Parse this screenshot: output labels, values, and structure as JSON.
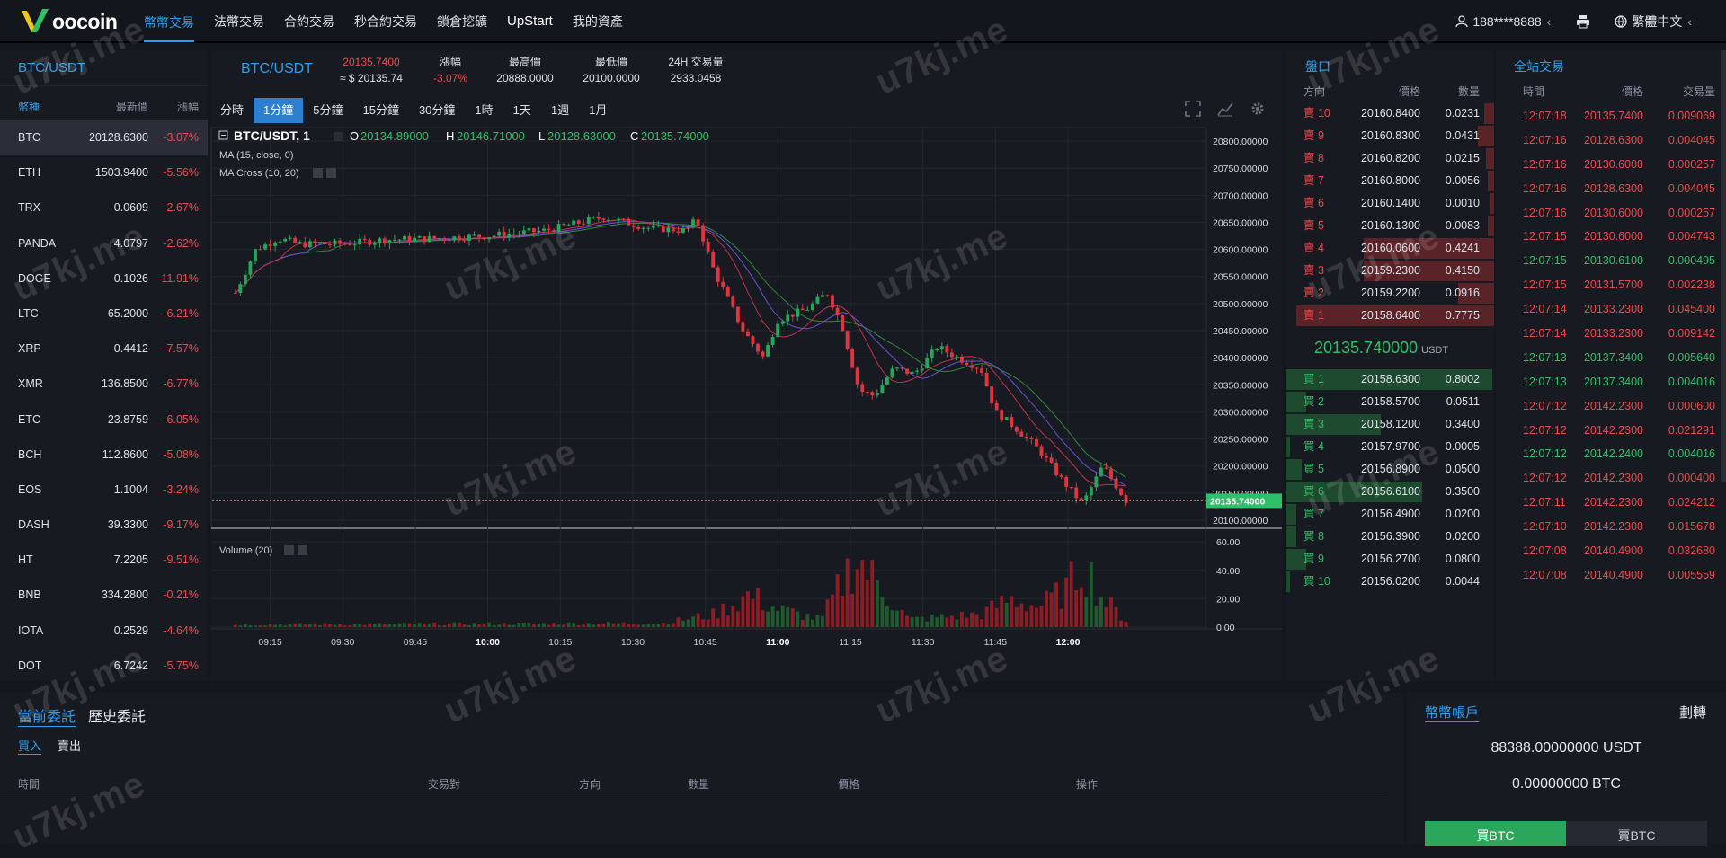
{
  "nav": {
    "logo_text": "oocoin",
    "links": [
      "幣幣交易",
      "法幣交易",
      "合約交易",
      "秒合約交易",
      "鎖倉挖礦",
      "UpStart",
      "我的資產"
    ],
    "user": "188****8888",
    "user_caret": "‹",
    "language": "繁體中文",
    "language_caret": "‹"
  },
  "pairs": {
    "title": "BTC/USDT",
    "headers": [
      "幣種",
      "最新價",
      "漲幅"
    ],
    "rows": [
      {
        "coin": "BTC",
        "price": "20128.6300",
        "change": "-3.07%"
      },
      {
        "coin": "ETH",
        "price": "1503.9400",
        "change": "-5.56%"
      },
      {
        "coin": "TRX",
        "price": "0.0609",
        "change": "-2.67%"
      },
      {
        "coin": "PANDA",
        "price": "4.0797",
        "change": "-2.62%"
      },
      {
        "coin": "DOGE",
        "price": "0.1026",
        "change": "-11.91%"
      },
      {
        "coin": "LTC",
        "price": "65.2000",
        "change": "-6.21%"
      },
      {
        "coin": "XRP",
        "price": "0.4412",
        "change": "-7.57%"
      },
      {
        "coin": "XMR",
        "price": "136.8500",
        "change": "-6.77%"
      },
      {
        "coin": "ETC",
        "price": "23.8759",
        "change": "-6.05%"
      },
      {
        "coin": "BCH",
        "price": "112.8600",
        "change": "-5.08%"
      },
      {
        "coin": "EOS",
        "price": "1.1004",
        "change": "-3.24%"
      },
      {
        "coin": "DASH",
        "price": "39.3300",
        "change": "-9.17%"
      },
      {
        "coin": "HT",
        "price": "7.2205",
        "change": "-9.51%"
      },
      {
        "coin": "BNB",
        "price": "334.2800",
        "change": "-0.21%"
      },
      {
        "coin": "IOTA",
        "price": "0.2529",
        "change": "-4.64%"
      },
      {
        "coin": "DOT",
        "price": "6.7242",
        "change": "-5.75%"
      }
    ]
  },
  "ticker": {
    "pair": "BTC/USDT",
    "price": "20135.7400",
    "price_usd": "≈ $ 20135.74",
    "change_label": "漲幅",
    "change": "-3.07%",
    "high_label": "最高價",
    "high": "20888.0000",
    "low_label": "最低價",
    "low": "20100.0000",
    "vol_label": "24H 交易量",
    "vol": "2933.0458"
  },
  "timeframes": [
    "分時",
    "1分鐘",
    "5分鐘",
    "15分鐘",
    "30分鐘",
    "1時",
    "1天",
    "1週",
    "1月"
  ],
  "active_timeframe": "1分鐘",
  "chart_legend": {
    "symbol": "BTC/USDT, 1",
    "o_label": "O",
    "o": "20134.89000",
    "h_label": "H",
    "h": "20146.71000",
    "l_label": "L",
    "l": "20128.63000",
    "c_label": "C",
    "c": "20135.74000",
    "ma": "MA (15, close, 0)",
    "ma_cross": "MA Cross (10, 20)",
    "volume": "Volume (20)",
    "last_price_tag": "20135.74000"
  },
  "chart_data": {
    "type": "candlestick",
    "price_axis_ticks": [
      "20800.00000",
      "20750.00000",
      "20700.00000",
      "20650.00000",
      "20600.00000",
      "20550.00000",
      "20500.00000",
      "20450.00000",
      "20400.00000",
      "20350.00000",
      "20300.00000",
      "20250.00000",
      "20200.00000",
      "20150.00000",
      "20100.00000"
    ],
    "price_ylim": [
      20085,
      20825
    ],
    "volume_axis_ticks": [
      "60.00",
      "40.00",
      "20.00",
      "0.00"
    ],
    "volume_ylim": [
      0,
      62
    ],
    "time_ticks": [
      "09:15",
      "09:30",
      "09:45",
      "10:00",
      "10:15",
      "10:30",
      "10:45",
      "11:00",
      "11:15",
      "11:30",
      "11:45",
      "12:00"
    ],
    "time_ticks_bold": [
      "10:00",
      "11:00",
      "12:00"
    ],
    "colors": {
      "up": "#26a65b",
      "down": "#e0343f",
      "ma15": "#6a4fd8",
      "ma10": "#c2314c",
      "ma20": "#2c8a3e",
      "price_line": "#2fbf68"
    },
    "price_path": [
      [
        9.13,
        20520
      ],
      [
        9.2,
        20600
      ],
      [
        9.28,
        20620
      ],
      [
        9.35,
        20610
      ],
      [
        9.5,
        20610
      ],
      [
        9.65,
        20618
      ],
      [
        9.8,
        20620
      ],
      [
        10.0,
        20625
      ],
      [
        10.2,
        20635
      ],
      [
        10.4,
        20660
      ],
      [
        10.55,
        20640
      ],
      [
        10.68,
        20635
      ],
      [
        10.72,
        20655
      ],
      [
        10.78,
        20560
      ],
      [
        10.88,
        20450
      ],
      [
        10.95,
        20400
      ],
      [
        11.0,
        20470
      ],
      [
        11.1,
        20490
      ],
      [
        11.17,
        20520
      ],
      [
        11.22,
        20460
      ],
      [
        11.28,
        20340
      ],
      [
        11.33,
        20330
      ],
      [
        11.4,
        20380
      ],
      [
        11.47,
        20370
      ],
      [
        11.55,
        20420
      ],
      [
        11.62,
        20400
      ],
      [
        11.7,
        20380
      ],
      [
        11.75,
        20300
      ],
      [
        11.82,
        20270
      ],
      [
        11.9,
        20230
      ],
      [
        11.97,
        20180
      ],
      [
        12.05,
        20130
      ],
      [
        12.12,
        20200
      ],
      [
        12.2,
        20136
      ]
    ],
    "volume_profile": [
      [
        9.13,
        2
      ],
      [
        10.6,
        3
      ],
      [
        10.78,
        10
      ],
      [
        10.9,
        25
      ],
      [
        11.0,
        14
      ],
      [
        11.15,
        6
      ],
      [
        11.22,
        35
      ],
      [
        11.27,
        55
      ],
      [
        11.32,
        40
      ],
      [
        11.45,
        6
      ],
      [
        11.7,
        10
      ],
      [
        11.8,
        22
      ],
      [
        11.9,
        16
      ],
      [
        12.0,
        30
      ],
      [
        12.05,
        52
      ],
      [
        12.12,
        22
      ],
      [
        12.2,
        5
      ]
    ]
  },
  "book": {
    "title": "盤口",
    "headers": [
      "方向",
      "價格",
      "數量"
    ],
    "sells": [
      {
        "side": "賣 10",
        "price": "20160.8400",
        "qty": "0.0231",
        "depth": 0.05
      },
      {
        "side": "賣 9",
        "price": "20160.8300",
        "qty": "0.0431",
        "depth": 0.08
      },
      {
        "side": "賣 8",
        "price": "20160.8200",
        "qty": "0.0215",
        "depth": 0.04
      },
      {
        "side": "賣 7",
        "price": "20160.8000",
        "qty": "0.0056",
        "depth": 0.03
      },
      {
        "side": "賣 6",
        "price": "20160.1400",
        "qty": "0.0010",
        "depth": 0.02
      },
      {
        "side": "賣 5",
        "price": "20160.1300",
        "qty": "0.0083",
        "depth": 0.03
      },
      {
        "side": "賣 4",
        "price": "20160.0600",
        "qty": "0.4241",
        "depth": 0.66
      },
      {
        "side": "賣 3",
        "price": "20159.2300",
        "qty": "0.4150",
        "depth": 0.66
      },
      {
        "side": "賣 2",
        "price": "20159.2200",
        "qty": "0.0916",
        "depth": 0.18
      },
      {
        "side": "賣 1",
        "price": "20158.6400",
        "qty": "0.7775",
        "depth": 1.0
      }
    ],
    "last_price": "20135.740000",
    "last_unit": "USDT",
    "buys": [
      {
        "side": "買 1",
        "price": "20158.6300",
        "qty": "0.8002",
        "depth": 1.0
      },
      {
        "side": "買 2",
        "price": "20158.5700",
        "qty": "0.0511",
        "depth": 0.1
      },
      {
        "side": "買 3",
        "price": "20158.1200",
        "qty": "0.3400",
        "depth": 0.46
      },
      {
        "side": "買 4",
        "price": "20157.9700",
        "qty": "0.0005",
        "depth": 0.02
      },
      {
        "side": "買 5",
        "price": "20156.8900",
        "qty": "0.0500",
        "depth": 0.08
      },
      {
        "side": "買 6",
        "price": "20156.6100",
        "qty": "0.3500",
        "depth": 0.66
      },
      {
        "side": "買 7",
        "price": "20156.4900",
        "qty": "0.0200",
        "depth": 0.05
      },
      {
        "side": "買 8",
        "price": "20156.3900",
        "qty": "0.0200",
        "depth": 0.05
      },
      {
        "side": "買 9",
        "price": "20156.2700",
        "qty": "0.0800",
        "depth": 0.1
      },
      {
        "side": "買 10",
        "price": "20156.0200",
        "qty": "0.0044",
        "depth": 0.02
      }
    ]
  },
  "trades": {
    "title": "全站交易",
    "headers": [
      "時間",
      "價格",
      "交易量"
    ],
    "rows": [
      {
        "t": "12:07:18",
        "p": "20135.7400",
        "q": "0.009069",
        "side": "r"
      },
      {
        "t": "12:07:16",
        "p": "20128.6300",
        "q": "0.004045",
        "side": "r"
      },
      {
        "t": "12:07:16",
        "p": "20130.6000",
        "q": "0.000257",
        "side": "r"
      },
      {
        "t": "12:07:16",
        "p": "20128.6300",
        "q": "0.004045",
        "side": "r"
      },
      {
        "t": "12:07:16",
        "p": "20130.6000",
        "q": "0.000257",
        "side": "r"
      },
      {
        "t": "12:07:15",
        "p": "20130.6000",
        "q": "0.004743",
        "side": "r"
      },
      {
        "t": "12:07:15",
        "p": "20130.6100",
        "q": "0.000495",
        "side": "g"
      },
      {
        "t": "12:07:15",
        "p": "20131.5700",
        "q": "0.002238",
        "side": "r"
      },
      {
        "t": "12:07:14",
        "p": "20133.2300",
        "q": "0.045400",
        "side": "r"
      },
      {
        "t": "12:07:14",
        "p": "20133.2300",
        "q": "0.009142",
        "side": "r"
      },
      {
        "t": "12:07:13",
        "p": "20137.3400",
        "q": "0.005640",
        "side": "g"
      },
      {
        "t": "12:07:13",
        "p": "20137.3400",
        "q": "0.004016",
        "side": "g"
      },
      {
        "t": "12:07:12",
        "p": "20142.2300",
        "q": "0.000600",
        "side": "r"
      },
      {
        "t": "12:07:12",
        "p": "20142.2300",
        "q": "0.021291",
        "side": "r"
      },
      {
        "t": "12:07:12",
        "p": "20142.2400",
        "q": "0.004016",
        "side": "g"
      },
      {
        "t": "12:07:12",
        "p": "20142.2300",
        "q": "0.000400",
        "side": "r"
      },
      {
        "t": "12:07:11",
        "p": "20142.2300",
        "q": "0.024212",
        "side": "r"
      },
      {
        "t": "12:07:10",
        "p": "20142.2300",
        "q": "0.015678",
        "side": "r"
      },
      {
        "t": "12:07:08",
        "p": "20140.4900",
        "q": "0.032680",
        "side": "r"
      },
      {
        "t": "12:07:08",
        "p": "20140.4900",
        "q": "0.005559",
        "side": "r"
      }
    ]
  },
  "orders": {
    "tab_current": "當前委託",
    "tab_history": "歷史委託",
    "sub_buy": "買入",
    "sub_sell": "賣出",
    "headers": [
      "時間",
      "交易對",
      "方向",
      "數量",
      "價格",
      "操作"
    ]
  },
  "account": {
    "title": "幣幣帳戶",
    "transfer": "劃轉",
    "usdt": "88388.00000000 USDT",
    "btc": "0.00000000 BTC",
    "buy_btn": "買BTC",
    "sell_btn": "賣BTC"
  },
  "watermark": "u7kj.me"
}
